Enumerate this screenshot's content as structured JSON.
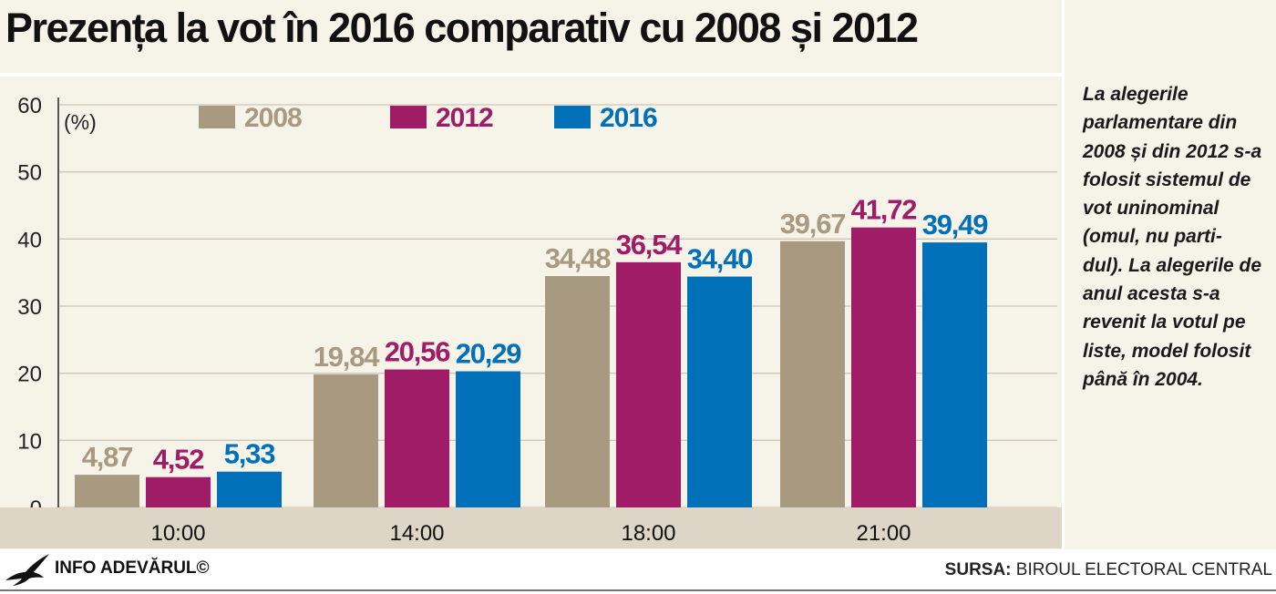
{
  "title": "Prezența la vot  în 2016 comparativ cu  2008 și 2012",
  "side_note": "La alegerile parlamentare din 2008 și din 2012 s-a folosit sistemul de vot uninominal (omul, nu parti- dul). La alegerile de anul acesta s-a revenit la votul pe liste, model folosit până în 2004.",
  "footer": {
    "brand": "INFO ADEVĂRUL©",
    "source_label": "SURSA:",
    "source_value": " BIROUL ELECTORAL CENTRAL",
    "logo_icon": "eagle-icon"
  },
  "colors": {
    "2008": "#a89a80",
    "2012": "#a01c66",
    "2016": "#0070b8",
    "grid": "#cfc6b4",
    "axis_band": "#ddd6c6"
  },
  "chart_data": {
    "type": "bar",
    "ylabel": "(%)",
    "ylim": [
      0,
      60
    ],
    "yticks": [
      "0",
      "10",
      "20",
      "30",
      "40",
      "50",
      "60"
    ],
    "categories": [
      "10:00",
      "14:00",
      "18:00",
      "21:00"
    ],
    "grid": true,
    "legend": "top-left",
    "series": [
      {
        "name": "2008",
        "values": [
          4.87,
          19.84,
          34.48,
          39.67
        ],
        "labels": [
          "4,87",
          "19,84",
          "34,48",
          "39,67"
        ],
        "color": "#a89a80"
      },
      {
        "name": "2012",
        "values": [
          4.52,
          20.56,
          36.54,
          41.72
        ],
        "labels": [
          "4,52",
          "20,56",
          "36,54",
          "41,72"
        ],
        "color": "#a01c66"
      },
      {
        "name": "2016",
        "values": [
          5.33,
          20.29,
          34.4,
          39.49
        ],
        "labels": [
          "5,33",
          "20,29",
          "34,40",
          "39,49"
        ],
        "color": "#0070b8"
      }
    ]
  }
}
